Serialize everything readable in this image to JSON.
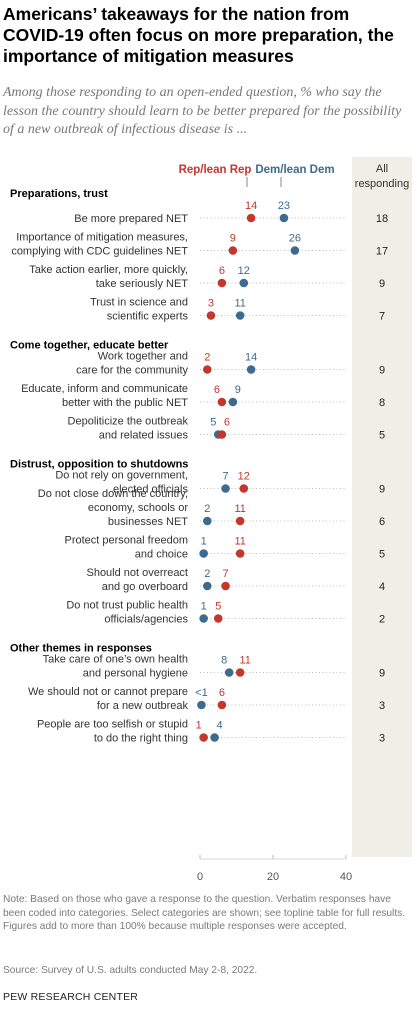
{
  "title": "Americans’ takeaways for the nation from COVID-19 often focus on more preparation, the importance of mitigation measures",
  "subtitle": "Among those responding to an open-ended question, % who say the lesson the country should learn to be better prepared for the possibility of a new outbreak of infectious disease is ...",
  "colors": {
    "rep": "#c4372c",
    "dem": "#3d6a8e",
    "all_col_bg": "#f0efe7",
    "dot_line": "#bdbdbd"
  },
  "chart_data": {
    "type": "dot",
    "legend": {
      "rep_label": "Rep/lean Rep",
      "dem_label": "Dem/lean Dem",
      "all_label_1": "All",
      "all_label_2": "responding"
    },
    "xlim": [
      0,
      40
    ],
    "xticks": [
      "0",
      "20",
      "40"
    ],
    "groups": [
      {
        "heading": "Preparations, trust",
        "rows": [
          {
            "label": [
              "Be more prepared NET"
            ],
            "rep": 14,
            "dem": 23,
            "rep_label": "14",
            "dem_label": "23",
            "all": "18"
          },
          {
            "label": [
              "Importance of mitigation measures,",
              "complying with CDC guidelines NET"
            ],
            "rep": 9,
            "dem": 26,
            "rep_label": "9",
            "dem_label": "26",
            "all": "17"
          },
          {
            "label": [
              "Take action earlier, more quickly,",
              "take seriously NET"
            ],
            "rep": 6,
            "dem": 12,
            "rep_label": "6",
            "dem_label": "12",
            "all": "9"
          },
          {
            "label": [
              "Trust in science and",
              "scientific experts"
            ],
            "rep": 3,
            "dem": 11,
            "rep_label": "3",
            "dem_label": "11",
            "all": "7"
          }
        ]
      },
      {
        "heading": "Come together, educate better",
        "rows": [
          {
            "label": [
              "Work together and",
              "care for the community"
            ],
            "rep": 2,
            "dem": 14,
            "rep_label": "2",
            "dem_label": "14",
            "all": "9"
          },
          {
            "label": [
              "Educate, inform and communicate",
              "better with the public NET"
            ],
            "rep": 6,
            "dem": 9,
            "rep_label": "6",
            "dem_label": "9",
            "all": "8"
          },
          {
            "label": [
              "Depoliticize the outbreak",
              "and related issues"
            ],
            "rep": 6,
            "dem": 5,
            "rep_label": "6",
            "dem_label": "5",
            "all": "5"
          }
        ]
      },
      {
        "heading": "Distrust, opposition to shutdowns",
        "rows": [
          {
            "label": [
              "Do not rely on government,",
              "elected officials"
            ],
            "rep": 12,
            "dem": 7,
            "rep_label": "12",
            "dem_label": "7",
            "all": "9"
          },
          {
            "label": [
              "Do not close down the country,",
              "economy, schools or",
              "businesses NET"
            ],
            "rep": 11,
            "dem": 2,
            "rep_label": "11",
            "dem_label": "2",
            "all": "6"
          },
          {
            "label": [
              "Protect personal freedom",
              "and choice"
            ],
            "rep": 11,
            "dem": 1,
            "rep_label": "11",
            "dem_label": "1",
            "all": "5"
          },
          {
            "label": [
              "Should not overreact",
              "and go overboard"
            ],
            "rep": 7,
            "dem": 2,
            "rep_label": "7",
            "dem_label": "2",
            "all": "4"
          },
          {
            "label": [
              "Do not trust public health",
              "officials/agencies"
            ],
            "rep": 5,
            "dem": 1,
            "rep_label": "5",
            "dem_label": "1",
            "all": "2"
          }
        ]
      },
      {
        "heading": "Other themes in responses",
        "rows": [
          {
            "label": [
              "Take care of one’s own health",
              "and personal hygiene"
            ],
            "rep": 11,
            "dem": 8,
            "rep_label": "11",
            "dem_label": "8",
            "all": "9"
          },
          {
            "label": [
              "We should not or cannot prepare",
              "for a new outbreak"
            ],
            "rep": 6,
            "dem": 0.4,
            "rep_label": "6",
            "dem_label": "<1",
            "all": "3"
          },
          {
            "label": [
              "People are too selfish or stupid",
              "to do the right thing"
            ],
            "rep": 1,
            "dem": 4,
            "rep_label": "1",
            "dem_label": "4",
            "all": "3"
          }
        ]
      }
    ]
  },
  "note": "Note: Based on those who gave a response to the question. Verbatim responses have been coded into categories. Select categories are shown; see topline table for full results. Figures add to more than 100% because multiple responses were accepted.",
  "source": "Source: Survey of U.S. adults conducted May 2-8, 2022.",
  "org": "PEW RESEARCH CENTER"
}
